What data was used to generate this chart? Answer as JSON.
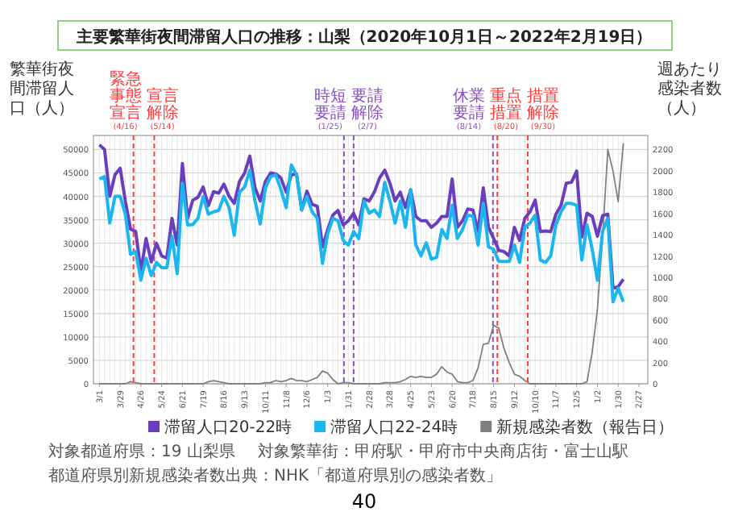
{
  "chart_data": {
    "type": "line",
    "title": "主要繁華街夜間滞留人口の推移：山梨（2020年10月1日～2022年2月19日）",
    "ylabel": "繁華街夜間滞留人口（人）",
    "y2label": "週あたり感染者数（人）",
    "x": [
      "2020-03-01",
      "2020-03-08",
      "2020-03-15",
      "2020-03-22",
      "2020-03-29",
      "2020-04-05",
      "2020-04-12",
      "2020-04-19",
      "2020-04-26",
      "2020-05-03",
      "2020-05-10",
      "2020-05-17",
      "2020-05-24",
      "2020-05-31",
      "2020-06-07",
      "2020-06-14",
      "2020-06-21",
      "2020-06-28",
      "2020-07-05",
      "2020-07-12",
      "2020-07-19",
      "2020-07-26",
      "2020-08-02",
      "2020-08-09",
      "2020-08-16",
      "2020-08-23",
      "2020-08-30",
      "2020-09-06",
      "2020-09-13",
      "2020-09-20",
      "2020-09-27",
      "2020-10-04",
      "2020-10-11",
      "2020-10-18",
      "2020-10-25",
      "2020-11-01",
      "2020-11-08",
      "2020-11-15",
      "2020-11-22",
      "2020-11-29",
      "2020-12-06",
      "2020-12-13",
      "2020-12-20",
      "2020-12-27",
      "2021-01-03",
      "2021-01-10",
      "2021-01-17",
      "2021-01-24",
      "2021-01-31",
      "2021-02-07",
      "2021-02-14",
      "2021-02-21",
      "2021-02-28",
      "2021-03-07",
      "2021-03-14",
      "2021-03-21",
      "2021-03-28",
      "2021-04-04",
      "2021-04-11",
      "2021-04-18",
      "2021-04-25",
      "2021-05-02",
      "2021-05-09",
      "2021-05-16",
      "2021-05-23",
      "2021-05-30",
      "2021-06-06",
      "2021-06-13",
      "2021-06-20",
      "2021-06-27",
      "2021-07-04",
      "2021-07-11",
      "2021-07-18",
      "2021-07-25",
      "2021-08-01",
      "2021-08-08",
      "2021-08-15",
      "2021-08-22",
      "2021-08-29",
      "2021-09-05",
      "2021-09-12",
      "2021-09-19",
      "2021-09-26",
      "2021-10-03",
      "2021-10-10",
      "2021-10-17",
      "2021-10-24",
      "2021-10-31",
      "2021-11-07",
      "2021-11-14",
      "2021-11-21",
      "2021-11-28",
      "2021-12-05",
      "2021-12-12",
      "2021-12-19",
      "2021-12-26",
      "2022-01-02",
      "2022-01-09",
      "2022-01-16",
      "2022-01-23",
      "2022-01-30",
      "2022-02-06"
    ],
    "xlim": [
      "2020-02-22",
      "2022-03-11"
    ],
    "xticks": [
      {
        "value": "2020-03-01",
        "label": "3/1"
      },
      {
        "value": "2020-03-29",
        "label": "3/29"
      },
      {
        "value": "2020-04-26",
        "label": "4/26"
      },
      {
        "value": "2020-05-24",
        "label": "5/24"
      },
      {
        "value": "2020-06-21",
        "label": "6/21"
      },
      {
        "value": "2020-07-19",
        "label": "7/19"
      },
      {
        "value": "2020-08-16",
        "label": "8/16"
      },
      {
        "value": "2020-09-13",
        "label": "9/13"
      },
      {
        "value": "2020-10-11",
        "label": "10/11"
      },
      {
        "value": "2020-11-08",
        "label": "11/8"
      },
      {
        "value": "2020-12-06",
        "label": "12/6"
      },
      {
        "value": "2021-01-03",
        "label": "1/3"
      },
      {
        "value": "2021-01-31",
        "label": "1/31"
      },
      {
        "value": "2021-02-28",
        "label": "2/28"
      },
      {
        "value": "2021-03-28",
        "label": "3/28"
      },
      {
        "value": "2021-04-25",
        "label": "4/25"
      },
      {
        "value": "2021-05-23",
        "label": "5/23"
      },
      {
        "value": "2021-06-20",
        "label": "6/20"
      },
      {
        "value": "2021-07-18",
        "label": "7/18"
      },
      {
        "value": "2021-08-15",
        "label": "8/15"
      },
      {
        "value": "2021-09-12",
        "label": "9/12"
      },
      {
        "value": "2021-10-10",
        "label": "10/10"
      },
      {
        "value": "2021-11-07",
        "label": "11/7"
      },
      {
        "value": "2021-12-05",
        "label": "12/5"
      },
      {
        "value": "2022-01-02",
        "label": "1/2"
      },
      {
        "value": "2022-01-30",
        "label": "1/30"
      },
      {
        "value": "2022-02-27",
        "label": "2/27"
      }
    ],
    "series": [
      {
        "name": "滞留人口20-22時",
        "color": "#6a3fbf",
        "values": [
          51000,
          50000,
          40000,
          44600,
          46000,
          39000,
          33000,
          32500,
          24000,
          31000,
          26000,
          30000,
          27300,
          26800,
          35300,
          29600,
          47000,
          35300,
          39200,
          39800,
          42000,
          38000,
          41000,
          40700,
          42600,
          40000,
          38500,
          43200,
          45000,
          48600,
          41800,
          39000,
          43200,
          45000,
          44800,
          43900,
          40900,
          44600,
          44800,
          37100,
          41100,
          38300,
          37900,
          29200,
          32900,
          36000,
          37000,
          33900,
          34800,
          36400,
          33900,
          39500,
          39000,
          40900,
          43900,
          45600,
          42800,
          39000,
          40900,
          37600,
          41400,
          35700,
          34800,
          34800,
          33400,
          34300,
          35700,
          35700,
          43700,
          33400,
          34800,
          37300,
          37100,
          32500,
          41800,
          33400,
          31000,
          28500,
          28200,
          27300,
          33400,
          30600,
          35300,
          36700,
          39200,
          32500,
          32600,
          32500,
          36200,
          38100,
          42800,
          43000,
          45400,
          31300,
          36400,
          35700,
          31500,
          35900,
          36200,
          20400,
          20700,
          22300
        ]
      },
      {
        "name": "滞留人口22-24時",
        "color": "#1ab6ef",
        "values": [
          43700,
          44200,
          34300,
          40000,
          40000,
          36200,
          27600,
          28200,
          22100,
          26800,
          23100,
          25900,
          24800,
          24800,
          31500,
          23500,
          42800,
          33900,
          34000,
          35300,
          40000,
          36200,
          36700,
          37000,
          40000,
          37600,
          31700,
          40900,
          42000,
          45600,
          39000,
          34100,
          41800,
          44200,
          44600,
          41400,
          37600,
          46700,
          44600,
          37100,
          40000,
          36700,
          35300,
          25700,
          32000,
          35300,
          34800,
          30600,
          29600,
          32500,
          31000,
          39000,
          36400,
          37100,
          35700,
          43000,
          39000,
          34300,
          39000,
          33400,
          41400,
          29600,
          27300,
          30100,
          26600,
          27000,
          32900,
          31000,
          38100,
          31000,
          32900,
          36000,
          35700,
          29600,
          38500,
          29200,
          28700,
          26100,
          26100,
          26100,
          29600,
          25900,
          33400,
          34300,
          36000,
          26400,
          25900,
          27300,
          33900,
          36700,
          38500,
          38500,
          38100,
          26400,
          33900,
          28700,
          22100,
          32500,
          35300,
          17500,
          20400,
          17500
        ]
      },
      {
        "name": "新規感染者数（報告日）",
        "color": "#808080",
        "axis": "y2",
        "values": [
          0,
          0,
          0,
          0,
          0,
          0,
          20,
          10,
          0,
          0,
          0,
          0,
          0,
          0,
          0,
          0,
          0,
          0,
          0,
          0,
          0,
          20,
          30,
          20,
          10,
          0,
          0,
          0,
          0,
          0,
          0,
          0,
          10,
          10,
          30,
          20,
          30,
          50,
          30,
          30,
          20,
          40,
          60,
          120,
          100,
          40,
          0,
          10,
          10,
          0,
          0,
          0,
          0,
          0,
          0,
          10,
          10,
          10,
          20,
          40,
          70,
          60,
          70,
          60,
          60,
          90,
          160,
          110,
          90,
          20,
          10,
          10,
          30,
          150,
          370,
          380,
          550,
          520,
          330,
          200,
          90,
          70,
          30,
          0,
          0,
          0,
          0,
          0,
          0,
          0,
          0,
          0,
          0,
          0,
          20,
          300,
          700,
          1380,
          2200,
          2000,
          1710,
          2260
        ]
      }
    ],
    "ylim": [
      0,
      53000
    ],
    "yticks": [
      0,
      5000,
      10000,
      15000,
      20000,
      25000,
      30000,
      35000,
      40000,
      45000,
      50000
    ],
    "y2lim": [
      0,
      2332
    ],
    "y2ticks": [
      0,
      200,
      400,
      600,
      800,
      1000,
      1200,
      1400,
      1600,
      1800,
      2000,
      2200
    ],
    "grid": true,
    "legend": "bottom",
    "marker": "none",
    "line_style": "solid",
    "ref_lines": [
      {
        "axis": "x",
        "value": "2020-04-16",
        "label": "緊急事態宣言(4/16)",
        "color": "#ff3b3b",
        "line_style": "dashed"
      },
      {
        "axis": "x",
        "value": "2020-05-14",
        "label": "宣言解除(5/14)",
        "color": "#ff3b3b",
        "line_style": "dashed"
      },
      {
        "axis": "x",
        "value": "2021-01-25",
        "label": "時短要請(1/25)",
        "color": "#8a4fc8",
        "line_style": "dashed"
      },
      {
        "axis": "x",
        "value": "2021-02-07",
        "label": "要請解除(2/7)",
        "color": "#8a4fc8",
        "line_style": "dashed"
      },
      {
        "axis": "x",
        "value": "2021-08-14",
        "label": "休業要請(8/14)",
        "color": "#8a4fc8",
        "line_style": "dashed"
      },
      {
        "axis": "x",
        "value": "2021-08-20",
        "label": "重点措置(8/20)",
        "color": "#ff3b3b",
        "line_style": "dashed"
      },
      {
        "axis": "x",
        "value": "2021-09-30",
        "label": "措置解除(9/30)",
        "color": "#ff3b3b",
        "line_style": "dashed"
      }
    ],
    "annotations": [
      "対象都道府県：19 山梨県",
      "対象繁華街：甲府駅・甲府市中央商店街・富士山駅",
      "都道府県別新規感染者数出典：NHK「都道府県別の感染者数」",
      "40"
    ]
  }
}
